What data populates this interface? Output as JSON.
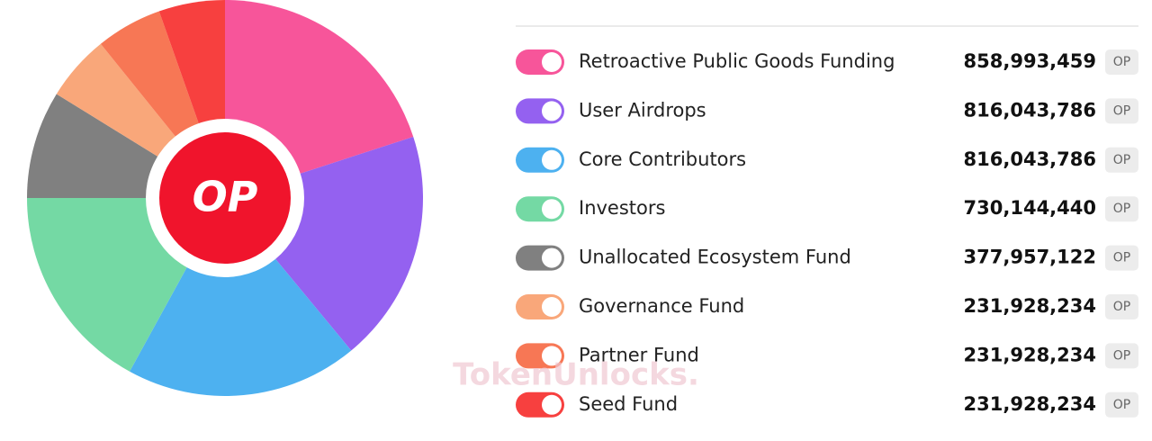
{
  "chart_data": {
    "type": "pie",
    "categories": [
      "Retroactive Public Goods Funding",
      "User Airdrops",
      "Core Contributors",
      "Investors",
      "Unallocated Ecosystem Fund",
      "Governance Fund",
      "Partner Fund",
      "Seed Fund"
    ],
    "values": [
      858993459,
      816043786,
      816043786,
      730144440,
      377957122,
      231928234,
      231928234,
      231928234
    ],
    "value_labels": [
      "858,993,459",
      "816,043,786",
      "816,043,786",
      "730,144,440",
      "377,957,122",
      "231,928,234",
      "231,928,234",
      "231,928,234"
    ],
    "colors": [
      "#f7559a",
      "#9461f0",
      "#4db1f0",
      "#74d9a4",
      "#808080",
      "#f9a77a",
      "#f77755",
      "#f7403f"
    ],
    "unit": "OP",
    "center_label": "OP",
    "watermark": "TokenUnlocks."
  }
}
